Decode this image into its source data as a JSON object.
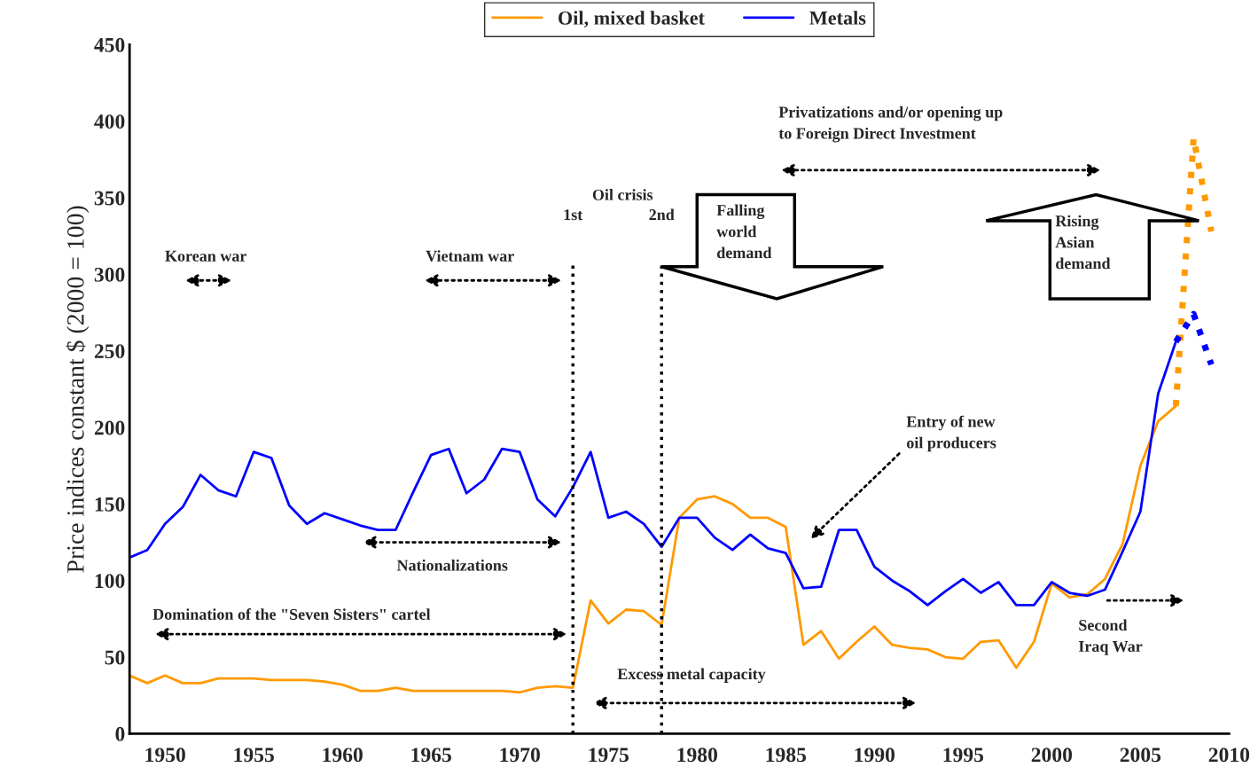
{
  "chart_data": {
    "type": "line",
    "ylabel": "Price indices constant $ (2000 = 100)",
    "x": [
      1948,
      1949,
      1950,
      1951,
      1952,
      1953,
      1954,
      1955,
      1956,
      1957,
      1958,
      1959,
      1960,
      1961,
      1962,
      1963,
      1964,
      1965,
      1966,
      1967,
      1968,
      1969,
      1970,
      1971,
      1972,
      1973,
      1974,
      1975,
      1976,
      1977,
      1978,
      1979,
      1980,
      1981,
      1982,
      1983,
      1984,
      1985,
      1986,
      1987,
      1988,
      1989,
      1990,
      1991,
      1992,
      1993,
      1994,
      1995,
      1996,
      1997,
      1998,
      1999,
      2000,
      2001,
      2002,
      2003,
      2004,
      2005,
      2006,
      2007
    ],
    "series": [
      {
        "name": "Oil, mixed basket",
        "color": "#ff9900",
        "line_style": "solid",
        "values": [
          38,
          33,
          38,
          33,
          33,
          36,
          36,
          36,
          35,
          35,
          35,
          34,
          32,
          28,
          28,
          30,
          28,
          28,
          28,
          28,
          28,
          28,
          27,
          30,
          31,
          30,
          87,
          72,
          81,
          80,
          71,
          141,
          153,
          155,
          150,
          141,
          141,
          135,
          58,
          67,
          49,
          60,
          70,
          58,
          56,
          55,
          50,
          49,
          60,
          61,
          43,
          60,
          98,
          89,
          91,
          101,
          124,
          175,
          204,
          214
        ]
      },
      {
        "name": "Metals",
        "color": "#0000ff",
        "line_style": "solid",
        "values": [
          115,
          120,
          137,
          148,
          169,
          159,
          155,
          184,
          180,
          149,
          137,
          144,
          140,
          136,
          133,
          133,
          158,
          182,
          186,
          157,
          166,
          186,
          184,
          153,
          142,
          161,
          184,
          141,
          145,
          137,
          122,
          141,
          141,
          128,
          120,
          130,
          121,
          118,
          95,
          96,
          133,
          133,
          109,
          100,
          93,
          84,
          93,
          101,
          92,
          99,
          84,
          84,
          99,
          92,
          90,
          94,
          119,
          145,
          222,
          256
        ]
      },
      {
        "color": "#ff9900",
        "line_style": "dotted",
        "x": [
          2007,
          2008,
          2009
        ],
        "values": [
          214,
          389,
          328
        ]
      },
      {
        "color": "#0000ff",
        "line_style": "dotted",
        "x": [
          2007,
          2008,
          2009
        ],
        "values": [
          256,
          274,
          241
        ]
      }
    ],
    "xlim": [
      1948,
      2010
    ],
    "ylim": [
      0,
      450
    ],
    "yticks": [
      0,
      50,
      100,
      150,
      200,
      250,
      300,
      350,
      400,
      450
    ],
    "xticks": [
      1950,
      1955,
      1960,
      1965,
      1970,
      1975,
      1980,
      1985,
      1990,
      1995,
      2000,
      2005,
      2010
    ],
    "ref_lines": [
      {
        "axis": "x",
        "value": 1973,
        "label": "1st",
        "line_style": "dotted",
        "color": "#000000"
      },
      {
        "axis": "x",
        "value": 1978,
        "label": "2nd",
        "line_style": "dotted",
        "color": "#000000"
      }
    ],
    "annotations": [
      "Korean war",
      "Vietnam war",
      "Oil crisis",
      "Falling\nworld\ndemand",
      "Privatizations and/or opening up\nto Foreign Direct Investment",
      "Rising\nAsian\ndemand",
      "Entry of new\noil producers",
      "Nationalizations",
      "Domination of the \"Seven Sisters\" cartel",
      "Excess metal capacity",
      "Second\nIraq War"
    ],
    "grid": false,
    "legend": "top"
  }
}
